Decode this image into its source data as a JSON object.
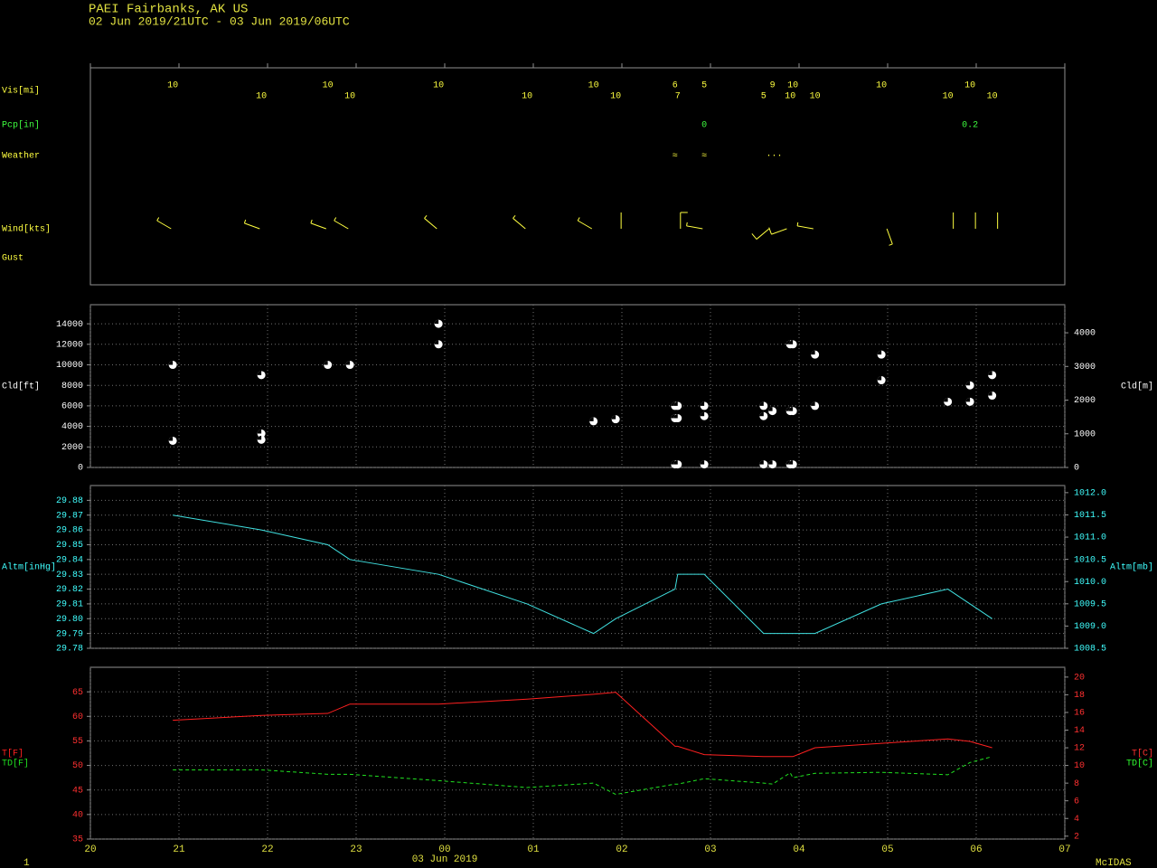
{
  "header": {
    "title": "PAEI  Fairbanks, AK US",
    "subtitle": "02 Jun 2019/21UTC - 03 Jun 2019/06UTC",
    "page": "1",
    "brand": "McIDAS"
  },
  "xaxis": {
    "xlim": [
      0,
      11
    ],
    "label": "03 Jun 2019",
    "xticks": [
      {
        "value": 0,
        "label": "20"
      },
      {
        "value": 1,
        "label": "21"
      },
      {
        "value": 2,
        "label": "22"
      },
      {
        "value": 3,
        "label": "23"
      },
      {
        "value": 4,
        "label": "00"
      },
      {
        "value": 5,
        "label": "01"
      },
      {
        "value": 6,
        "label": "02"
      },
      {
        "value": 7,
        "label": "03"
      },
      {
        "value": 8,
        "label": "04"
      },
      {
        "value": 9,
        "label": "05"
      },
      {
        "value": 10,
        "label": "06"
      },
      {
        "value": 11,
        "label": "07"
      }
    ]
  },
  "chart_data": [
    {
      "type": "obs-rows",
      "rows": [
        {
          "name": "Vis[mi]",
          "color": "#ffff40",
          "x": [
            0.93,
            1.93,
            2.68,
            2.93,
            3.93,
            4.93,
            5.68,
            5.93,
            6.6,
            6.63,
            6.93,
            7.6,
            7.7,
            7.9,
            7.93,
            8.18,
            8.93,
            9.68,
            9.93,
            10.18
          ],
          "values": [
            10,
            10,
            10,
            10,
            10,
            10,
            10,
            10,
            6,
            7,
            5,
            5,
            9,
            10,
            10,
            10,
            10,
            10,
            10,
            10
          ]
        },
        {
          "name": "Pcp[in]",
          "color": "#40ff40",
          "x": [
            6.93,
            9.93
          ],
          "values": [
            0,
            0.2
          ]
        },
        {
          "name": "Weather",
          "color": "#ffff40",
          "x": [
            6.6,
            6.93,
            7.72
          ],
          "values": [
            "≈",
            "≈",
            "∙∙∙"
          ]
        }
      ],
      "wind": {
        "name": "Wind[kts]",
        "color": "#ffff40",
        "x": [
          0.85,
          1.85,
          2.6,
          2.85,
          3.85,
          4.85,
          5.6,
          5.93,
          6.6,
          6.85,
          7.6,
          7.8,
          8.1,
          8.93,
          9.68,
          9.93,
          10.18
        ],
        "direction": [
          300,
          290,
          290,
          300,
          310,
          310,
          300,
          360,
          360,
          280,
          230,
          250,
          280,
          160,
          360,
          360,
          360
        ],
        "speed": [
          5,
          5,
          5,
          5,
          5,
          5,
          5,
          3,
          10,
          5,
          10,
          10,
          5,
          5,
          3,
          3,
          3
        ]
      },
      "gust": {
        "name": "Gust",
        "color": "#ffff40"
      }
    },
    {
      "type": "scatter",
      "ylabel": "Cld[ft]",
      "y2label": "Cld[m]",
      "color": "#ffffff",
      "x": [
        0.93,
        0.93,
        1.93,
        1.93,
        1.93,
        2.68,
        2.93,
        3.93,
        3.93,
        5.68,
        5.93,
        6.6,
        6.6,
        6.6,
        6.63,
        6.63,
        6.63,
        6.93,
        6.93,
        6.93,
        7.6,
        7.6,
        7.6,
        7.7,
        7.7,
        7.9,
        7.9,
        7.9,
        7.93,
        7.93,
        7.93,
        8.18,
        8.18,
        8.93,
        8.93,
        9.68,
        9.93,
        9.93,
        10.18,
        10.18
      ],
      "values": [
        10000,
        2600,
        9000,
        3300,
        2700,
        10000,
        10000,
        14000,
        12000,
        4500,
        4700,
        6000,
        4800,
        300,
        6000,
        4800,
        300,
        6000,
        5000,
        300,
        6000,
        5000,
        300,
        5500,
        300,
        12000,
        5500,
        300,
        12000,
        5500,
        300,
        11000,
        6000,
        11000,
        8500,
        6400,
        8000,
        6400,
        9000,
        7000
      ],
      "ylim": [
        0,
        15860
      ],
      "yticks": [
        0,
        2000,
        4000,
        6000,
        8000,
        10000,
        12000,
        14000
      ],
      "y2lim": [
        0,
        4834
      ],
      "y2ticks": [
        0,
        1000,
        2000,
        3000,
        4000
      ],
      "grid": true
    },
    {
      "type": "line",
      "ylabel": "Altm[inHg]",
      "y2label": "Altm[mb]",
      "tick_color": "#40ffff",
      "x": [
        0.93,
        1.93,
        2.68,
        2.93,
        3.93,
        4.93,
        5.68,
        5.93,
        6.6,
        6.63,
        6.93,
        7.6,
        7.7,
        7.9,
        7.93,
        8.18,
        8.93,
        9.68,
        9.93,
        10.18
      ],
      "series": [
        {
          "color": "#40e0e0",
          "values": [
            29.87,
            29.86,
            29.85,
            29.84,
            29.83,
            29.81,
            29.79,
            29.8,
            29.82,
            29.83,
            29.83,
            29.79,
            29.79,
            29.79,
            29.79,
            29.79,
            29.81,
            29.82,
            29.81,
            29.8
          ]
        }
      ],
      "ylim": [
        29.78,
        29.89
      ],
      "yticks": [
        29.78,
        29.79,
        {
          "value": 29.8,
          "label": "29.80"
        },
        29.81,
        29.82,
        29.83,
        29.84,
        29.85,
        29.86,
        29.87,
        29.88
      ],
      "y2lim": [
        1008.5,
        1012.16
      ],
      "y2ticks": [
        1008.5,
        {
          "value": 1009,
          "label": "1009.0"
        },
        1009.5,
        {
          "value": 1010,
          "label": "1010.0"
        },
        1010.5,
        {
          "value": 1011,
          "label": "1011.0"
        },
        1011.5,
        {
          "value": 1012,
          "label": "1012.0"
        }
      ],
      "grid": true
    },
    {
      "type": "line",
      "y2labels": [
        {
          "text": "T[C]",
          "color": "#ff3030"
        },
        {
          "text": "TD[C]",
          "color": "#30ff30"
        }
      ],
      "tick_color": "#ff3030",
      "x": [
        0.93,
        1.93,
        2.68,
        2.93,
        3.93,
        4.93,
        5.68,
        5.93,
        6.6,
        6.63,
        6.93,
        7.6,
        7.7,
        7.9,
        7.93,
        8.18,
        8.93,
        9.68,
        9.93,
        10.18
      ],
      "series": [
        {
          "name": "T[F]",
          "color": "#ff2020",
          "dash": false,
          "values": [
            59.2,
            60.2,
            60.6,
            62.5,
            62.5,
            63.5,
            64.5,
            64.9,
            53.9,
            53.9,
            52.2,
            51.8,
            51.8,
            51.8,
            51.8,
            53.6,
            54.5,
            55.4,
            54.9,
            53.6
          ]
        },
        {
          "name": "TD[F]",
          "color": "#20e020",
          "dash": true,
          "values": [
            49.1,
            49.1,
            48.2,
            48.2,
            46.9,
            45.5,
            46.4,
            44.1,
            46.2,
            46.2,
            47.3,
            46.4,
            46.2,
            48.5,
            47.5,
            48.4,
            48.6,
            48.1,
            50.6,
            51.8
          ]
        }
      ],
      "ylim": [
        35,
        70
      ],
      "yticks": [
        35,
        40,
        45,
        50,
        55,
        60,
        65
      ],
      "y2lim": [
        1.67,
        21.11
      ],
      "y2ticks": [
        2,
        4,
        6,
        8,
        10,
        12,
        14,
        16,
        18,
        20
      ],
      "grid": true
    }
  ]
}
